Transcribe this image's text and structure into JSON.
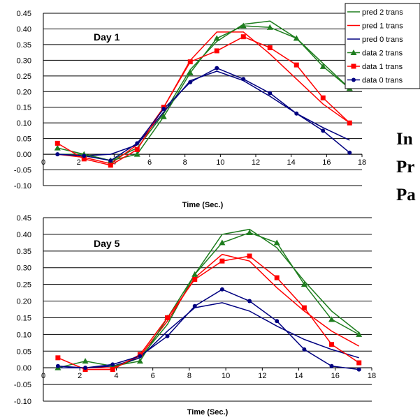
{
  "side_text": [
    "In",
    "Pr",
    "Pa"
  ],
  "chart_data": [
    {
      "type": "line",
      "annotation": "Day 1",
      "xlabel": "Time (Sec.)",
      "ylabel": "",
      "xlim": [
        0,
        18
      ],
      "ylim": [
        -0.1,
        0.45
      ],
      "xticks": [
        "0",
        "2",
        "4",
        "6",
        "8",
        "10",
        "12",
        "14",
        "16",
        "18"
      ],
      "yticks": [
        "-0.10",
        "-0.05",
        "0.00",
        "0.05",
        "0.10",
        "0.15",
        "0.20",
        "0.25",
        "0.30",
        "0.35",
        "0.40",
        "0.45"
      ],
      "grid": true,
      "legend": "top-right",
      "x": [
        0.8,
        2.3,
        3.8,
        5.3,
        6.8,
        8.3,
        9.8,
        11.3,
        12.8,
        14.3,
        15.8,
        17.3
      ],
      "series": [
        {
          "name": "pred 2 trans",
          "color": "#1e7d1e",
          "marker": "none",
          "values": [
            0.0,
            0.0,
            -0.02,
            0.02,
            0.13,
            0.27,
            0.36,
            0.415,
            0.425,
            0.37,
            0.29,
            0.21
          ]
        },
        {
          "name": "pred 1 trans",
          "color": "#ff0000",
          "marker": "none",
          "values": [
            0.0,
            -0.01,
            -0.03,
            0.03,
            0.15,
            0.3,
            0.39,
            0.39,
            0.32,
            0.24,
            0.16,
            0.1
          ]
        },
        {
          "name": "pred 0 trans",
          "color": "#000080",
          "marker": "none",
          "values": [
            0.0,
            -0.005,
            0.0,
            0.03,
            0.135,
            0.235,
            0.265,
            0.235,
            0.185,
            0.13,
            0.085,
            0.045
          ]
        },
        {
          "name": "data 2 trans",
          "color": "#1e7d1e",
          "marker": "triangle",
          "values": [
            0.02,
            0.0,
            -0.02,
            0.0,
            0.12,
            0.26,
            0.37,
            0.41,
            0.405,
            0.37,
            0.28,
            0.21
          ]
        },
        {
          "name": "data 1 trans",
          "color": "#ff0000",
          "marker": "square",
          "values": [
            0.035,
            -0.015,
            -0.035,
            0.015,
            0.15,
            0.295,
            0.33,
            0.375,
            0.34,
            0.285,
            0.18,
            0.1
          ]
        },
        {
          "name": "data 0 trans",
          "color": "#000080",
          "marker": "circle",
          "values": [
            0.0,
            -0.005,
            -0.02,
            0.035,
            0.145,
            0.23,
            0.275,
            0.24,
            0.195,
            0.13,
            0.075,
            0.005
          ]
        }
      ]
    },
    {
      "type": "line",
      "annotation": "Day 5",
      "xlabel": "Time (Sec.)",
      "ylabel": "",
      "xlim": [
        0,
        18
      ],
      "ylim": [
        -0.1,
        0.45
      ],
      "xticks": [
        "0",
        "2",
        "4",
        "6",
        "8",
        "10",
        "12",
        "14",
        "16",
        "18"
      ],
      "yticks": [
        "-0.10",
        "-0.05",
        "0.00",
        "0.05",
        "0.10",
        "0.15",
        "0.20",
        "0.25",
        "0.30",
        "0.35",
        "0.40",
        "0.45"
      ],
      "grid": true,
      "legend": "none",
      "x": [
        0.8,
        2.3,
        3.8,
        5.3,
        6.8,
        8.3,
        9.8,
        11.3,
        12.8,
        14.3,
        15.8,
        17.3
      ],
      "series": [
        {
          "name": "pred 2 trans",
          "color": "#1e7d1e",
          "marker": "none",
          "values": [
            0.0,
            0.0,
            0.0,
            0.03,
            0.13,
            0.28,
            0.4,
            0.415,
            0.36,
            0.26,
            0.17,
            0.105
          ]
        },
        {
          "name": "pred 1 trans",
          "color": "#ff0000",
          "marker": "none",
          "values": [
            0.0,
            0.0,
            0.0,
            0.035,
            0.14,
            0.27,
            0.34,
            0.32,
            0.24,
            0.17,
            0.11,
            0.065
          ]
        },
        {
          "name": "pred 0 trans",
          "color": "#000080",
          "marker": "none",
          "values": [
            0.0,
            0.0,
            0.005,
            0.03,
            0.11,
            0.18,
            0.195,
            0.17,
            0.125,
            0.085,
            0.055,
            0.03
          ]
        },
        {
          "name": "data 2 trans",
          "color": "#1e7d1e",
          "marker": "triangle",
          "values": [
            0.0,
            0.02,
            0.005,
            0.02,
            0.15,
            0.28,
            0.375,
            0.405,
            0.375,
            0.25,
            0.145,
            0.1
          ]
        },
        {
          "name": "data 1 trans",
          "color": "#ff0000",
          "marker": "square",
          "values": [
            0.03,
            -0.005,
            -0.005,
            0.04,
            0.15,
            0.265,
            0.32,
            0.335,
            0.27,
            0.18,
            0.07,
            0.015
          ]
        },
        {
          "name": "data 0 trans",
          "color": "#000080",
          "marker": "circle",
          "values": [
            0.005,
            0.0,
            0.01,
            0.035,
            0.095,
            0.185,
            0.235,
            0.2,
            0.14,
            0.055,
            0.005,
            -0.005
          ]
        }
      ]
    }
  ]
}
